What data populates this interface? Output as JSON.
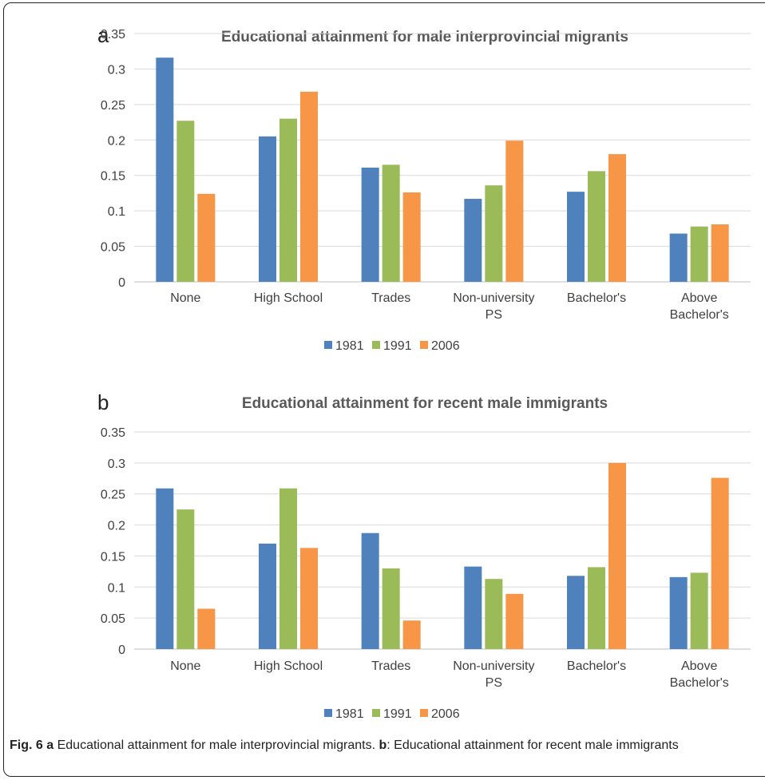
{
  "colors": {
    "1981": "#4f81bd",
    "1991": "#9bbb59",
    "2006": "#f79646",
    "grid": "#d9d9d9",
    "title": "#595959"
  },
  "chart_data": [
    {
      "panel": "a",
      "type": "bar",
      "title": "Educational attainment for male interprovincial migrants",
      "categories": [
        "None",
        "High School",
        "Trades",
        "Non-university PS",
        "Bachelor's",
        "Above Bachelor's"
      ],
      "category_lines": [
        [
          "None"
        ],
        [
          "High School"
        ],
        [
          "Trades"
        ],
        [
          "Non-university",
          "PS"
        ],
        [
          "Bachelor's"
        ],
        [
          "Above",
          "Bachelor's"
        ]
      ],
      "yticks": [
        "0",
        "0.05",
        "0.1",
        "0.15",
        "0.2",
        "0.25",
        "0.3",
        "0.35"
      ],
      "ylim": [
        0,
        0.35
      ],
      "legend_position": "bottom",
      "series": [
        {
          "name": "1981",
          "values": [
            0.316,
            0.205,
            0.161,
            0.117,
            0.127,
            0.068
          ]
        },
        {
          "name": "1991",
          "values": [
            0.227,
            0.23,
            0.165,
            0.136,
            0.156,
            0.078
          ]
        },
        {
          "name": "2006",
          "values": [
            0.124,
            0.268,
            0.126,
            0.199,
            0.18,
            0.081
          ]
        }
      ]
    },
    {
      "panel": "b",
      "type": "bar",
      "title": "Educational attainment for recent male immigrants",
      "categories": [
        "None",
        "High School",
        "Trades",
        "Non-university PS",
        "Bachelor's",
        "Above Bachelor's"
      ],
      "category_lines": [
        [
          "None"
        ],
        [
          "High School"
        ],
        [
          "Trades"
        ],
        [
          "Non-university",
          "PS"
        ],
        [
          "Bachelor's"
        ],
        [
          "Above",
          "Bachelor's"
        ]
      ],
      "yticks": [
        "0",
        "0.05",
        "0.1",
        "0.15",
        "0.2",
        "0.25",
        "0.3",
        "0.35"
      ],
      "ylim": [
        0,
        0.35
      ],
      "legend_position": "bottom",
      "series": [
        {
          "name": "1981",
          "values": [
            0.259,
            0.17,
            0.187,
            0.133,
            0.118,
            0.116
          ]
        },
        {
          "name": "1991",
          "values": [
            0.225,
            0.259,
            0.13,
            0.113,
            0.132,
            0.123
          ]
        },
        {
          "name": "2006",
          "values": [
            0.065,
            0.163,
            0.046,
            0.089,
            0.3,
            0.276
          ]
        }
      ]
    }
  ],
  "caption": {
    "label": "Fig. 6",
    "a_marker": "a",
    "a_text": "Educational attainment for male interprovincial migrants.",
    "b_marker": "b",
    "b_text": ": Educational attainment for recent male immigrants"
  }
}
